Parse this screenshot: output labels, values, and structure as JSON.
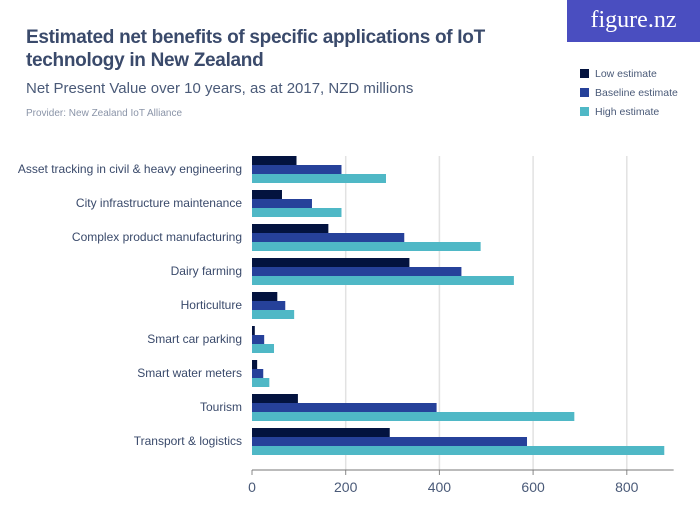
{
  "logo": "figure.nz",
  "chart_data": {
    "type": "bar",
    "orientation": "horizontal",
    "title": "Estimated net benefits of specific applications of IoT technology in New Zealand",
    "subtitle": "Net Present Value over 10 years, as at 2017, NZD millions",
    "provider": "Provider: New Zealand IoT Alliance",
    "categories": [
      "Asset tracking in civil & heavy engineering",
      "City infrastructure maintenance",
      "Complex product manufacturing",
      "Dairy farming",
      "Horticulture",
      "Smart car parking",
      "Smart water meters",
      "Tourism",
      "Transport & logistics"
    ],
    "series": [
      {
        "name": "Low estimate",
        "color": "#03133f",
        "values": [
          95,
          64,
          163,
          336,
          54,
          6,
          11,
          98,
          294
        ]
      },
      {
        "name": "Baseline estimate",
        "color": "#26419a",
        "values": [
          191,
          128,
          325,
          447,
          71,
          26,
          24,
          394,
          587
        ]
      },
      {
        "name": "High estimate",
        "color": "#4fb8c6",
        "values": [
          286,
          191,
          488,
          559,
          90,
          47,
          37,
          688,
          880
        ]
      }
    ],
    "xlim": [
      0,
      900
    ],
    "xticks": [
      "0",
      "200",
      "400",
      "600",
      "800"
    ],
    "grid": true,
    "legend_position": "top-right"
  }
}
